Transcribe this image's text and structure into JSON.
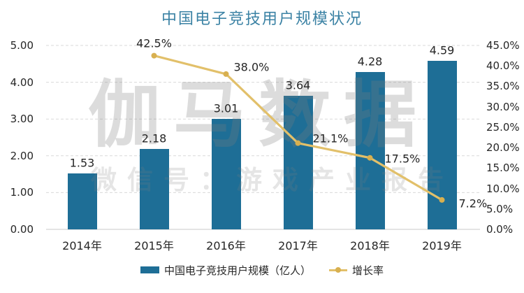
{
  "title": "中国电子竞技用户规模状况",
  "watermark": {
    "line1": "伽马数据",
    "line2": "微信号：游戏产业报告"
  },
  "legend": {
    "items": [
      {
        "label": "中国电子竞技用户规模（亿人）",
        "marker": "bar-swatch"
      },
      {
        "label": "增长率",
        "marker": "line-with-dot"
      }
    ]
  },
  "colors": {
    "bar": "#1e6e96",
    "line": "#e2c06a",
    "marker": "#d8b050",
    "title": "#3b82a4",
    "grid": "#d9d9d9",
    "axis_line": "#c9c9c9",
    "text": "#262626"
  },
  "chart_data": {
    "type": "bar+line combo, dual axis",
    "title": "中国电子竞技用户规模状况",
    "categories": [
      "2014年",
      "2015年",
      "2016年",
      "2017年",
      "2018年",
      "2019年"
    ],
    "series": [
      {
        "name": "中国电子竞技用户规模（亿人）",
        "type": "bar",
        "axis": "left",
        "values": [
          1.53,
          2.18,
          3.01,
          3.64,
          4.28,
          4.59
        ],
        "labels": [
          "1.53",
          "2.18",
          "3.01",
          "3.64",
          "4.28",
          "4.59"
        ]
      },
      {
        "name": "增长率",
        "type": "line",
        "axis": "right",
        "values": [
          null,
          42.5,
          38.0,
          21.1,
          17.5,
          7.2
        ],
        "labels": [
          null,
          "42.5%",
          "38.0%",
          "21.1%",
          "17.5%",
          "7.2%"
        ]
      }
    ],
    "left_axis": {
      "min": 0,
      "max": 5,
      "ticks": [
        "5.00",
        "4.00",
        "3.00",
        "2.00",
        "1.00",
        "0.00"
      ]
    },
    "right_axis": {
      "min": 0,
      "max": 45,
      "ticks": [
        "45.0%",
        "40.0%",
        "35.0%",
        "30.0%",
        "25.0%",
        "20.0%",
        "15.0%",
        "10.0%",
        "5.0%",
        "0.0%"
      ]
    },
    "grid": "horizontal dashed, at left-axis major ticks",
    "legend_position": "bottom"
  }
}
